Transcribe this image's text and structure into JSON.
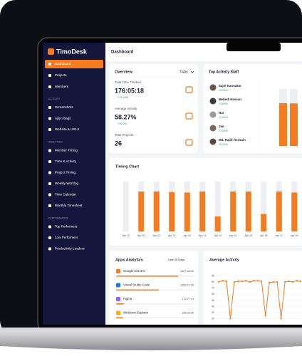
{
  "app": {
    "logo": "TimoDesk",
    "page_title": "Dashboard"
  },
  "sidebar": {
    "main": [
      "Dashboard",
      "Projects",
      "Members"
    ],
    "sections": [
      {
        "heading": "ACTIVITY",
        "items": [
          "Screenshots",
          "App Usage",
          "Website & URLS"
        ]
      },
      {
        "heading": "ANALYTICS",
        "items": [
          "Member Timing",
          "Time & Activity",
          "Project Timing",
          "Weekly Worklog",
          "Time Calendar",
          "Monthly Timesheet"
        ]
      },
      {
        "heading": "PERFORMANCE",
        "items": [
          "Top Performers",
          "Low Performers",
          "Productivity Leaders"
        ]
      }
    ]
  },
  "overview": {
    "title": "Overview",
    "period": "Today",
    "stats": [
      {
        "label": "Total Time Tracked",
        "value": "176:05:18",
        "change": "+13.48%"
      },
      {
        "label": "Average Activity",
        "value": "58.27%",
        "change": "+19.2%"
      },
      {
        "label": "Total Projects",
        "value": "26"
      }
    ]
  },
  "top_staff": {
    "title": "Top Activity Staff",
    "staff": [
      {
        "name": "Sajol Karmakar",
        "activity": "75.03%"
      },
      {
        "name": "Mehedi Hassan",
        "activity": "74.65%"
      },
      {
        "name": "Nur",
        "activity": "72.63%"
      },
      {
        "name": "Jim",
        "activity": "71.05%"
      },
      {
        "name": "Md. Rajib Hossain",
        "activity": "70.25%"
      }
    ],
    "chart": {
      "values": [
        75.03,
        74.65
      ],
      "ylim": [
        0,
        100
      ]
    }
  },
  "timing_chart": {
    "title": "Timing Chart",
    "categories": [
      "Apr 12",
      "Apr 20",
      "Apr 21",
      "Apr 22",
      "Apr 10",
      "Apr 11",
      "Apr 13",
      "Apr 14",
      "Apr 15",
      "Apr 16",
      "Apr 17",
      "Apr 18"
    ],
    "values": [
      0,
      80,
      80,
      79,
      78,
      80,
      30,
      80,
      80,
      35,
      80,
      78
    ],
    "ylim": [
      0,
      100
    ]
  },
  "apps": {
    "title": "Apps Analytics",
    "period": "Last 30 Days",
    "items": [
      {
        "name": "Google Chrome",
        "time": "1027:28:42",
        "share": 80
      },
      {
        "name": "Visual Studio Code",
        "time": "1358:10:15",
        "share": 55
      },
      {
        "name": "Figma",
        "time": "172:27:24",
        "share": 10
      },
      {
        "name": "Windows Explorer",
        "time": "158:35:16",
        "share": 9
      }
    ]
  },
  "average_activity": {
    "title": "Average Activity",
    "yticks": [
      90,
      80,
      70,
      60,
      50,
      40,
      30,
      20
    ],
    "ylim": [
      15,
      95
    ],
    "values": [
      80,
      82,
      81,
      20,
      80,
      81,
      81,
      82,
      80,
      82,
      82,
      81,
      25,
      79,
      80,
      80,
      20,
      80,
      81,
      80,
      82,
      81
    ]
  }
}
